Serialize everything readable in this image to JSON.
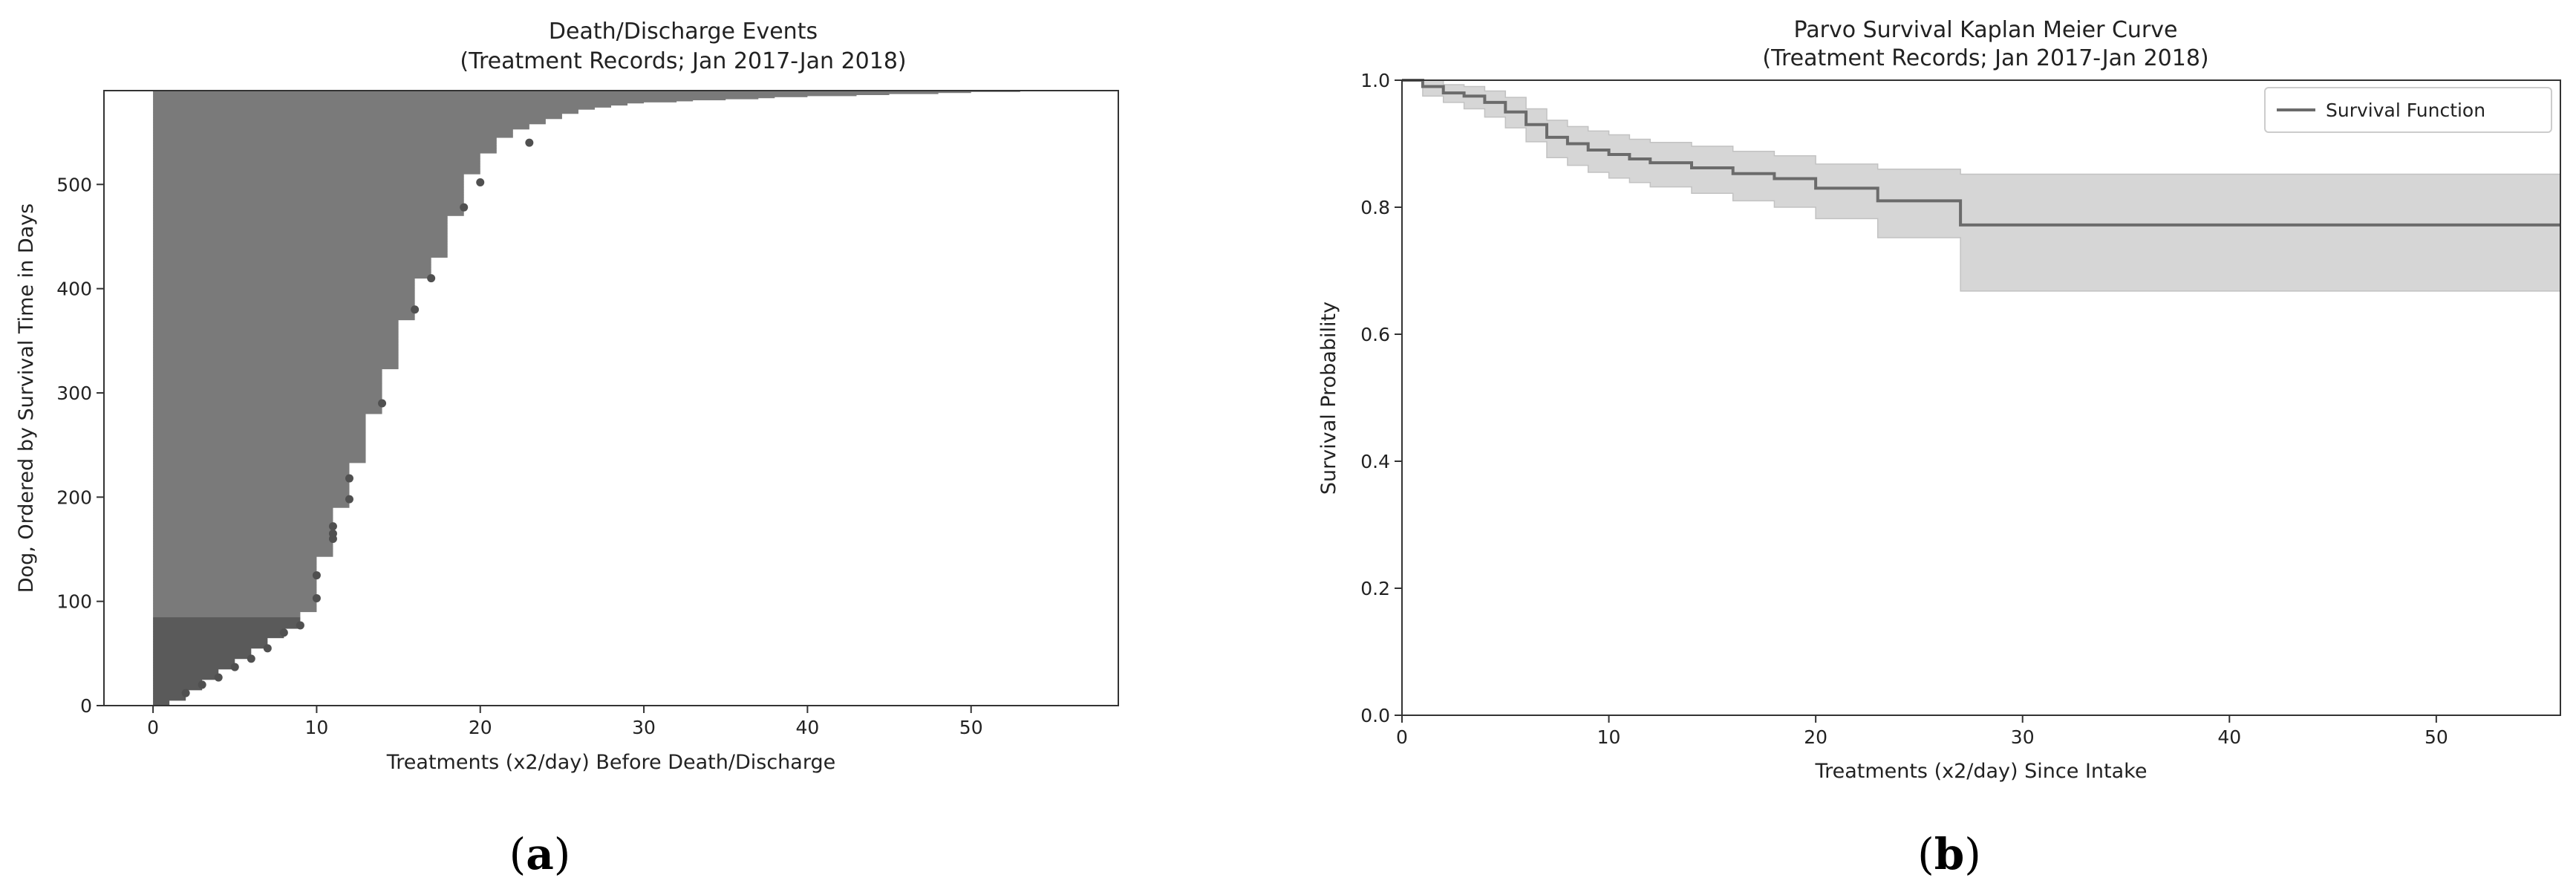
{
  "chart_data": [
    {
      "type": "bar",
      "orientation": "horizontal",
      "title": "Death/Discharge Events",
      "subtitle": "(Treatment Records; Jan 2017-Jan 2018)",
      "xlabel": "Treatments (x2/day) Before Death/Discharge",
      "ylabel": "Dog, Ordered by Survival Time in Days",
      "xlim": [
        -3,
        59
      ],
      "ylim": [
        0,
        590
      ],
      "xticks": [
        0,
        10,
        20,
        30,
        40,
        50
      ],
      "yticks": [
        0,
        100,
        200,
        300,
        400,
        500
      ],
      "grid": false,
      "colors": {
        "bar": "#7a7a7a",
        "bar_dark": "#5a5a5a",
        "marker": "#505050"
      },
      "bar_profile": {
        "dog_index": [
          0,
          10,
          20,
          30,
          40,
          50,
          60,
          70,
          78,
          85,
          95,
          105,
          120,
          135,
          150,
          165,
          180,
          200,
          220,
          245,
          270,
          290,
          310,
          335,
          360,
          380,
          400,
          420,
          440,
          460,
          480,
          500,
          520,
          540,
          550,
          560,
          566,
          570,
          575,
          578,
          581,
          584,
          586,
          588,
          590
        ],
        "treatments": [
          1,
          2,
          3,
          4,
          5,
          6,
          7,
          8,
          9,
          9,
          10,
          10,
          10,
          10,
          11,
          11,
          11,
          12,
          12,
          13,
          13,
          14,
          14,
          15,
          15,
          16,
          16,
          17,
          18,
          18,
          19,
          19,
          20,
          21,
          22,
          24,
          25,
          26,
          28,
          30,
          35,
          40,
          45,
          50,
          56
        ]
      },
      "markers": [
        {
          "x": 2,
          "y": 12
        },
        {
          "x": 3,
          "y": 20
        },
        {
          "x": 4,
          "y": 27
        },
        {
          "x": 5,
          "y": 37
        },
        {
          "x": 6,
          "y": 45
        },
        {
          "x": 7,
          "y": 55
        },
        {
          "x": 8,
          "y": 70
        },
        {
          "x": 9,
          "y": 77
        },
        {
          "x": 10,
          "y": 103
        },
        {
          "x": 10,
          "y": 125
        },
        {
          "x": 11,
          "y": 160
        },
        {
          "x": 11,
          "y": 165
        },
        {
          "x": 11,
          "y": 172
        },
        {
          "x": 12,
          "y": 198
        },
        {
          "x": 12,
          "y": 218
        },
        {
          "x": 14,
          "y": 290
        },
        {
          "x": 16,
          "y": 380
        },
        {
          "x": 17,
          "y": 410
        },
        {
          "x": 19,
          "y": 478
        },
        {
          "x": 20,
          "y": 502
        },
        {
          "x": 23,
          "y": 540
        }
      ]
    },
    {
      "type": "line",
      "title": "Parvo Survival Kaplan Meier Curve",
      "subtitle": "(Treatment Records; Jan 2017-Jan 2018)",
      "xlabel": "Treatments (x2/day) Since Intake",
      "ylabel": "Survival Probability",
      "xlim": [
        0,
        56
      ],
      "ylim": [
        0.0,
        1.0
      ],
      "xticks": [
        0,
        10,
        20,
        30,
        40,
        50
      ],
      "yticks": [
        0.0,
        0.2,
        0.4,
        0.6,
        0.8,
        1.0
      ],
      "yticklabels": [
        "0.0",
        "0.2",
        "0.4",
        "0.6",
        "0.8",
        "1.0"
      ],
      "grid": false,
      "legend": {
        "position": "top-right",
        "entries": [
          "Survival Function"
        ]
      },
      "colors": {
        "line": "#6b6b6b",
        "band": "#d6d6d6",
        "band_edge": "#c2c2c2"
      },
      "series": [
        {
          "name": "Survival Function",
          "step": "post",
          "x": [
            0,
            1,
            2,
            3,
            4,
            5,
            6,
            7,
            8,
            9,
            10,
            11,
            12,
            14,
            16,
            18,
            20,
            23,
            27,
            56
          ],
          "y": [
            1.0,
            0.99,
            0.98,
            0.975,
            0.965,
            0.95,
            0.93,
            0.91,
            0.9,
            0.89,
            0.883,
            0.876,
            0.87,
            0.862,
            0.853,
            0.845,
            0.83,
            0.81,
            0.772,
            0.772
          ],
          "ci_lower": [
            1.0,
            0.975,
            0.965,
            0.955,
            0.942,
            0.925,
            0.903,
            0.878,
            0.866,
            0.855,
            0.846,
            0.839,
            0.832,
            0.822,
            0.81,
            0.8,
            0.782,
            0.752,
            0.668,
            0.668
          ],
          "ci_upper": [
            1.0,
            1.0,
            0.993,
            0.99,
            0.983,
            0.973,
            0.955,
            0.937,
            0.927,
            0.92,
            0.914,
            0.907,
            0.902,
            0.896,
            0.888,
            0.881,
            0.868,
            0.86,
            0.852,
            0.852
          ]
        }
      ]
    }
  ],
  "panel_labels": {
    "a": {
      "open": "(",
      "letter": "a",
      "close": ")"
    },
    "b": {
      "open": "(",
      "letter": "b",
      "close": ")"
    }
  }
}
